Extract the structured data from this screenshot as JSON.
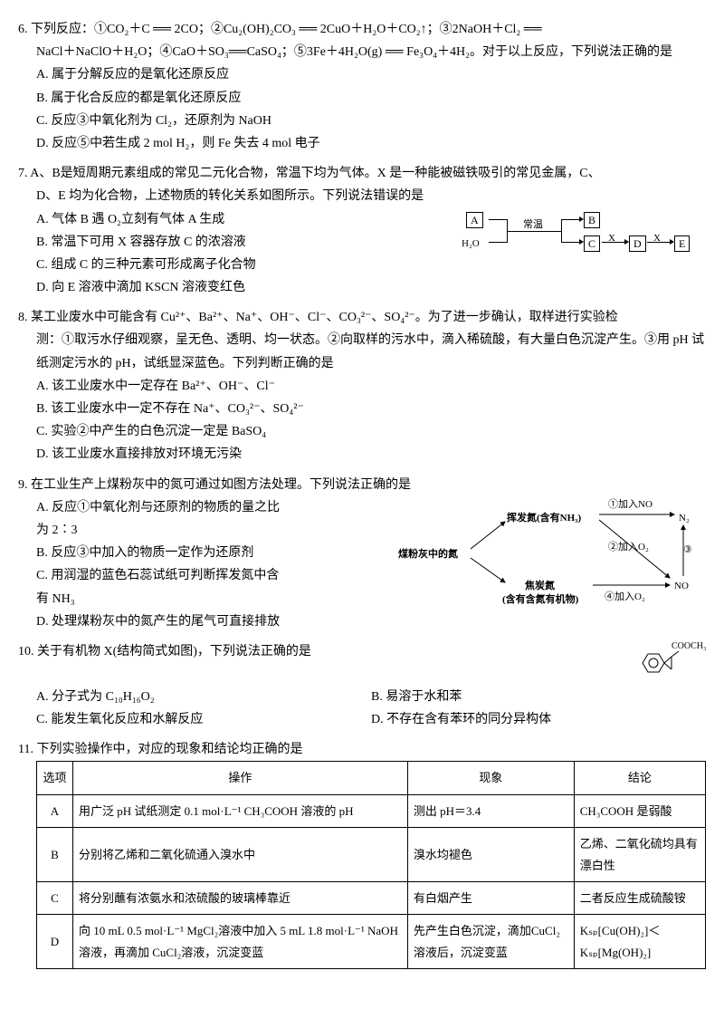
{
  "q6": {
    "num": "6.",
    "stem1": "下列反应：①CO₂＋C ══ 2CO；②Cu₂(OH)₂CO₃ ══ 2CuO＋H₂O＋CO₂↑；③2NaOH＋Cl₂ ══",
    "stem1_cond1": "高温",
    "stem1_cond2": "△",
    "stem2": "NaCl＋NaClO＋H₂O；④CaO＋SO₃══CaSO₄；⑤3Fe＋4H₂O(g) ══ Fe₃O₄＋4H₂。对于以上反应，下列说法正确的是",
    "stem2_cond": "△",
    "a": "A. 属于分解反应的是氧化还原反应",
    "b": "B. 属于化合反应的都是氧化还原反应",
    "c": "C. 反应③中氧化剂为 Cl₂，还原剂为 NaOH",
    "d": "D. 反应⑤中若生成 2 mol H₂，则 Fe 失去 4 mol 电子"
  },
  "q7": {
    "num": "7.",
    "stem1": "A、B是短周期元素组成的常见二元化合物，常温下均为气体。X 是一种能被磁铁吸引的常见金属，C、",
    "stem2": "D、E 均为化合物，上述物质的转化关系如图所示。下列说法错误的是",
    "a": "A. 气体 B 遇 O₂立刻有气体 A 生成",
    "b": "B. 常温下可用 X 容器存放 C 的浓溶液",
    "c": "C. 组成 C 的三种元素可形成离子化合物",
    "d": "D. 向 E 溶液中滴加 KSCN 溶液变红色",
    "diagram": {
      "boxA": "A",
      "boxB": "B",
      "boxC": "C",
      "boxD": "D",
      "boxE": "E",
      "h2o": "H₂O",
      "changwen": "常温",
      "x1": "X",
      "x2": "X"
    }
  },
  "q8": {
    "num": "8.",
    "stem1": "某工业废水中可能含有 Cu²⁺、Ba²⁺、Na⁺、OH⁻、Cl⁻、CO₃²⁻、SO₄²⁻。为了进一步确认，取样进行实验检",
    "stem2": "测：①取污水仔细观察，呈无色、透明、均一状态。②向取样的污水中，滴入稀硫酸，有大量白色沉淀产生。③用 pH 试纸测定污水的 pH，试纸显深蓝色。下列判断正确的是",
    "a": "A. 该工业废水中一定存在 Ba²⁺、OH⁻、Cl⁻",
    "b": "B. 该工业废水中一定不存在 Na⁺、CO₃²⁻、SO₄²⁻",
    "c": "C. 实验②中产生的白色沉淀一定是 BaSO₄",
    "d": "D. 该工业废水直接排放对环境无污染"
  },
  "q9": {
    "num": "9.",
    "stem1": "在工业生产上煤粉灰中的氮可通过如图方法处理。下列说法正确的是",
    "a1": "A. 反应①中氧化剂与还原剂的物质的量之比",
    "a2": "为 2∶3",
    "b": "B. 反应③中加入的物质一定作为还原剂",
    "c1": "C. 用润湿的蓝色石蕊试纸可判断挥发氮中含",
    "c2": "有 NH₃",
    "d": "D. 处理煤粉灰中的氮产生的尾气可直接排放",
    "diagram": {
      "center": "煤粉灰中的氮",
      "top": "挥发氮(含有NH₃)",
      "bot": "焦炭氮",
      "botsub": "(含有含氮有机物)",
      "n2": "N₂",
      "no": "NO",
      "r1": "①加入NO",
      "r2": "②加入O₂",
      "r3": "③",
      "r4": "④加入O₂"
    }
  },
  "q10": {
    "num": "10.",
    "stem": "关于有机物 X(结构简式如图)，下列说法正确的是",
    "a": "A. 分子式为 C₁₀H₁₆O₂",
    "b": "B. 易溶于水和苯",
    "c": "C. 能发生氧化反应和水解反应",
    "d": "D. 不存在含有苯环的同分异构体",
    "mol": "COOCH₃"
  },
  "q11": {
    "num": "11.",
    "stem": "下列实验操作中，对应的现象和结论均正确的是",
    "headers": [
      "选项",
      "操作",
      "现象",
      "结论"
    ],
    "rows": [
      [
        "A",
        "用广泛 pH 试纸测定 0.1 mol·L⁻¹ CH₃COOH 溶液的 pH",
        "测出 pH＝3.4",
        "CH₃COOH 是弱酸"
      ],
      [
        "B",
        "分别将乙烯和二氧化硫通入溴水中",
        "溴水均褪色",
        "乙烯、二氧化硫均具有漂白性"
      ],
      [
        "C",
        "将分别蘸有浓氨水和浓硫酸的玻璃棒靠近",
        "有白烟产生",
        "二者反应生成硫酸铵"
      ],
      [
        "D",
        "向 10 mL 0.5 mol·L⁻¹ MgCl₂溶液中加入 5 mL 1.8 mol·L⁻¹ NaOH 溶液，再滴加 CuCl₂溶液，沉淀变蓝",
        "先产生白色沉淀，滴加CuCl₂溶液后，沉淀变蓝",
        "Kₛₚ[Cu(OH)₂]＜Kₛₚ[Mg(OH)₂]"
      ]
    ]
  }
}
